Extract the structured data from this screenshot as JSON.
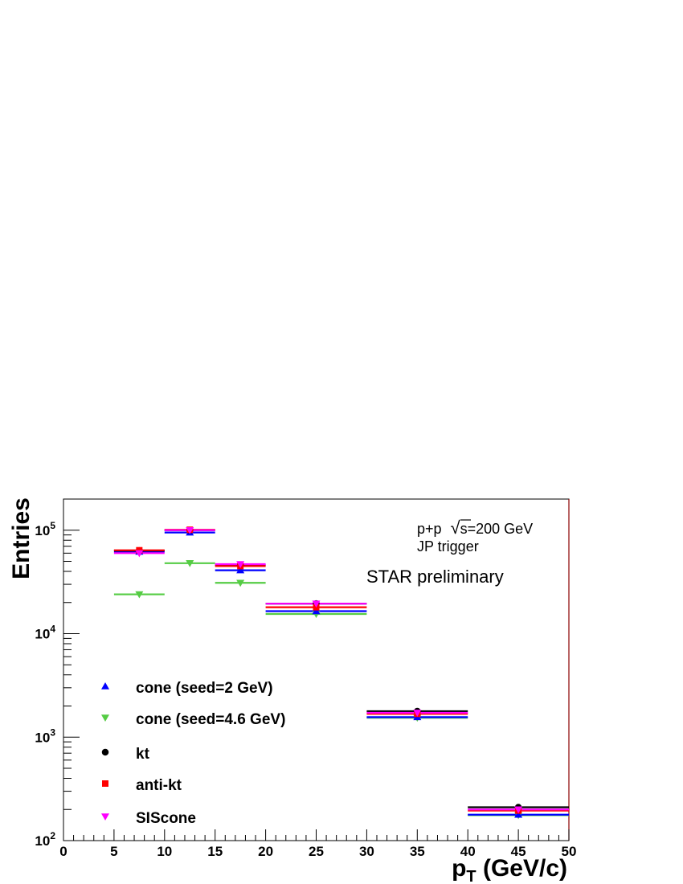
{
  "chart_data": {
    "type": "scatter",
    "xlabel_main": "p",
    "xlabel_sub": "T",
    "xlabel_rest": " (GeV/c)",
    "ylabel": "Entries",
    "xlim": [
      0,
      50
    ],
    "ylim": [
      100,
      200000
    ],
    "yscale": "log",
    "x_ticks": [
      "0",
      "5",
      "10",
      "15",
      "20",
      "25",
      "30",
      "35",
      "40",
      "45",
      "50"
    ],
    "y_ticks": [
      {
        "base": "10",
        "exp": "2",
        "value": 100
      },
      {
        "base": "10",
        "exp": "3",
        "value": 1000
      },
      {
        "base": "10",
        "exp": "4",
        "value": 10000
      },
      {
        "base": "10",
        "exp": "5",
        "value": 100000
      }
    ],
    "annotations": {
      "line1_pre": "p+p ",
      "line1_sqrt": "√",
      "line1_post": "s=200 GeV",
      "line2": "JP trigger",
      "line3": "STAR preliminary"
    },
    "bins": [
      {
        "low": 5,
        "high": 10
      },
      {
        "low": 10,
        "high": 15
      },
      {
        "low": 15,
        "high": 20
      },
      {
        "low": 20,
        "high": 30
      },
      {
        "low": 30,
        "high": 40
      },
      {
        "low": 40,
        "high": 50
      }
    ],
    "legend_position": "bottom-left",
    "series": [
      {
        "name": "cone (seed=2 GeV)",
        "color": "#0000ff",
        "marker": "triangle-up",
        "values": [
          62000,
          95000,
          41000,
          16500,
          1560,
          178
        ]
      },
      {
        "name": "cone (seed=4.6 GeV)",
        "color": "#55cc44",
        "marker": "triangle-down",
        "values": [
          24000,
          48000,
          31000,
          15500,
          1540,
          176
        ]
      },
      {
        "name": "kt",
        "color": "#000000",
        "marker": "circle",
        "values": [
          63500,
          100000,
          46000,
          19500,
          1780,
          210
        ]
      },
      {
        "name": "anti-kt",
        "color": "#ff0000",
        "marker": "square",
        "values": [
          64000,
          101000,
          45000,
          18000,
          1680,
          195
        ]
      },
      {
        "name": "SIScone",
        "color": "#ff00ff",
        "marker": "triangle-down",
        "values": [
          60000,
          100000,
          47000,
          19500,
          1720,
          200
        ]
      }
    ]
  }
}
